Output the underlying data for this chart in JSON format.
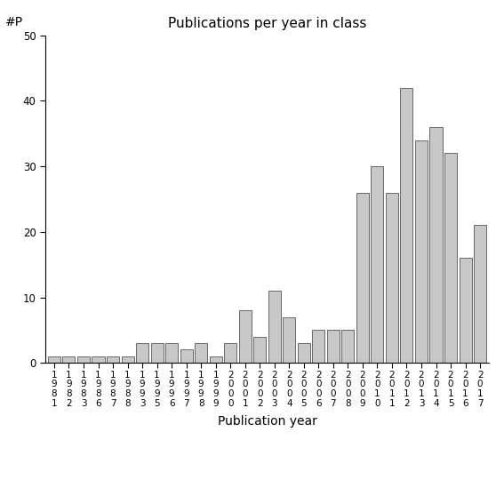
{
  "title": "Publications per year in class",
  "xlabel": "Publication year",
  "ylabel": "#P",
  "categories_raw": [
    "1981",
    "1982",
    "1983",
    "1986",
    "1987",
    "1988",
    "1993",
    "1995",
    "1996",
    "1997",
    "1998",
    "1999",
    "2000",
    "2001",
    "2002",
    "2003",
    "2004",
    "2005",
    "2006",
    "2007",
    "2008",
    "2009",
    "2010",
    "2011",
    "2012",
    "2013",
    "2014",
    "2015",
    "2016",
    "2017"
  ],
  "values": [
    1,
    1,
    1,
    1,
    1,
    1,
    3,
    3,
    3,
    2,
    3,
    1,
    3,
    8,
    4,
    11,
    7,
    3,
    5,
    5,
    5,
    26,
    30,
    26,
    42,
    34,
    36,
    32,
    16,
    21
  ],
  "bar_color": "#c8c8c8",
  "bar_edge_color": "#555555",
  "ylim": [
    0,
    50
  ],
  "yticks": [
    0,
    10,
    20,
    30,
    40,
    50
  ],
  "background_color": "#ffffff",
  "title_fontsize": 11,
  "axis_label_fontsize": 10,
  "tick_fontsize": 7.5
}
